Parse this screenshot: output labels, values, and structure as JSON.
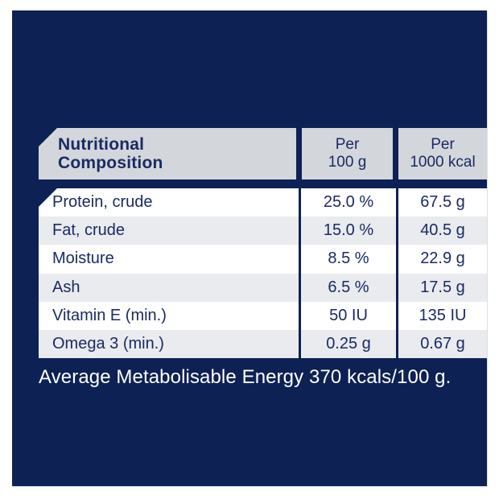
{
  "table": {
    "header": {
      "title_line1": "Nutritional",
      "title_line2": "Composition",
      "col_100g_line1": "Per",
      "col_100g_line2": "100 g",
      "col_1000kcal_line1": "Per",
      "col_1000kcal_line2": "1000 kcal"
    },
    "rows": [
      {
        "label": "Protein, crude",
        "per_100g": "25.0 %",
        "per_1000kcal": "67.5 g"
      },
      {
        "label": "Fat, crude",
        "per_100g": "15.0 %",
        "per_1000kcal": "40.5 g"
      },
      {
        "label": "Moisture",
        "per_100g": "8.5 %",
        "per_1000kcal": "22.9 g"
      },
      {
        "label": "Ash",
        "per_100g": "6.5 %",
        "per_1000kcal": "17.5 g"
      },
      {
        "label": "Vitamin E (min.)",
        "per_100g": "50 IU",
        "per_1000kcal": "135 IU"
      },
      {
        "label": "Omega 3 (min.)",
        "per_100g": "0.25 g",
        "per_1000kcal": "0.67 g"
      }
    ]
  },
  "footer": {
    "text": "Average Metabolisable Energy 370 kcals/100 g."
  },
  "colors": {
    "navy": "#0d2154",
    "header_gray": "#d3d6db",
    "stripe_gray": "#e9ebee",
    "text_navy": "#1a2a63",
    "white": "#ffffff"
  }
}
